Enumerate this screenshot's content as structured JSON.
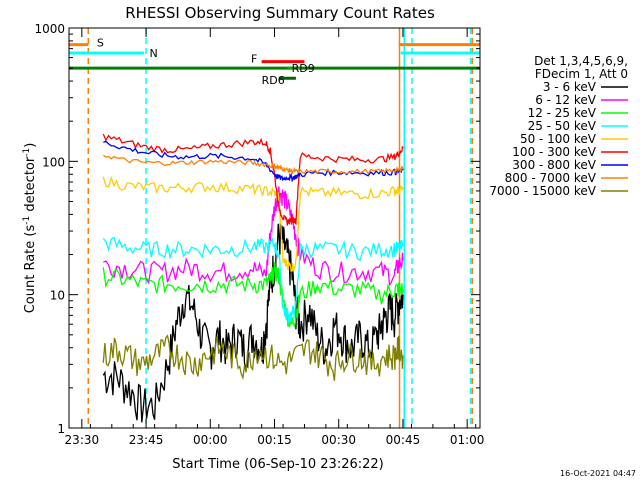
{
  "chart_data": {
    "type": "line",
    "title": "RHESSI Observing Summary Count Rates",
    "xlabel": "Start Time (06-Sep-10 23:26:22)",
    "ylabel_main": "Count Rate (s",
    "ylabel_sup1": "-1",
    "ylabel_mid": " detector",
    "ylabel_sup2": "-1",
    "ylabel_end": ")",
    "yscale": "log",
    "ylim": [
      1,
      1000
    ],
    "xlim_min": [
      -3,
      93
    ],
    "x_ticks": [
      {
        "t": 0,
        "label": "23:30"
      },
      {
        "t": 15,
        "label": "23:45"
      },
      {
        "t": 30,
        "label": "00:00"
      },
      {
        "t": 45,
        "label": "00:15"
      },
      {
        "t": 60,
        "label": "00:30"
      },
      {
        "t": 75,
        "label": "00:45"
      },
      {
        "t": 90,
        "label": "01:00"
      }
    ],
    "y_ticks": [
      {
        "v": 1,
        "label": "1"
      },
      {
        "v": 10,
        "label": "10"
      },
      {
        "v": 100,
        "label": "100"
      },
      {
        "v": 1000,
        "label": "1000"
      }
    ],
    "legend_header": [
      "Det 1,3,4,5,6,9,",
      "FDecim 1, Att 0"
    ],
    "series": [
      {
        "name": "3 - 6 keV",
        "color": "#000000",
        "x": [
          5,
          8,
          11,
          14,
          17,
          20,
          22,
          24,
          26,
          28,
          30,
          32,
          34,
          36,
          38,
          40,
          42,
          43,
          44,
          45,
          46,
          47,
          48,
          49,
          50,
          51,
          53,
          55,
          57,
          59,
          61,
          63,
          65,
          67,
          69,
          70,
          71,
          72,
          73,
          74,
          75
        ],
        "values": [
          2.5,
          2.5,
          2,
          1.5,
          1.5,
          3,
          6,
          10,
          8,
          5,
          4,
          5,
          4,
          5,
          4,
          5,
          4,
          6,
          12,
          18,
          28,
          25,
          20,
          15,
          8,
          6,
          8,
          5,
          4,
          6,
          5,
          4,
          5,
          4,
          5,
          6,
          7,
          8,
          7,
          9,
          10
        ]
      },
      {
        "name": "6 - 12 keV",
        "color": "#ff00ff",
        "x": [
          5,
          10,
          15,
          20,
          25,
          30,
          35,
          40,
          43,
          44,
          45,
          46,
          47,
          48,
          49,
          50,
          51,
          55,
          60,
          65,
          70,
          73,
          74,
          75
        ],
        "values": [
          17,
          16,
          15,
          15,
          16,
          15,
          15,
          16,
          14,
          28,
          45,
          60,
          55,
          48,
          38,
          28,
          20,
          16,
          15,
          15,
          15,
          14,
          17,
          18
        ]
      },
      {
        "name": "12 - 25 keV",
        "color": "#00ff00",
        "x": [
          5,
          10,
          15,
          20,
          25,
          30,
          35,
          40,
          43,
          44,
          45,
          46,
          47,
          48,
          49,
          50,
          51,
          55,
          60,
          65,
          70,
          73,
          74,
          75
        ],
        "values": [
          14,
          13,
          12,
          12,
          12,
          12,
          12,
          12,
          12,
          13,
          15,
          14,
          9,
          7,
          6,
          7,
          10,
          12,
          11,
          11,
          10,
          11,
          11,
          11
        ]
      },
      {
        "name": "25 - 50 keV",
        "color": "#00ffff",
        "x": [
          5,
          10,
          15,
          20,
          25,
          30,
          35,
          40,
          43,
          45,
          46,
          47,
          48,
          49,
          50,
          51,
          55,
          60,
          65,
          70,
          73,
          74,
          75
        ],
        "values": [
          25,
          23,
          22,
          22,
          22,
          22,
          22,
          23,
          23,
          24,
          20,
          8,
          7,
          7,
          8,
          22,
          22,
          22,
          21,
          22,
          22,
          22,
          23
        ]
      },
      {
        "name": "50 - 100 keV",
        "color": "#ffcc00",
        "x": [
          5,
          10,
          15,
          20,
          25,
          30,
          35,
          40,
          43,
          45,
          46,
          47,
          48,
          49,
          50,
          51,
          55,
          60,
          65,
          70,
          73,
          74,
          75
        ],
        "values": [
          72,
          66,
          64,
          63,
          64,
          65,
          63,
          62,
          60,
          58,
          55,
          18,
          17,
          16,
          17,
          60,
          58,
          58,
          57,
          58,
          60,
          60,
          62
        ]
      },
      {
        "name": "100 - 300 keV",
        "color": "#ff0000",
        "x": [
          5,
          10,
          15,
          20,
          25,
          30,
          35,
          40,
          43,
          44,
          45,
          46,
          47,
          48,
          49,
          50,
          51,
          55,
          60,
          65,
          70,
          73,
          74,
          75
        ],
        "values": [
          155,
          140,
          128,
          122,
          123,
          130,
          135,
          140,
          138,
          120,
          80,
          45,
          38,
          35,
          37,
          36,
          110,
          107,
          104,
          103,
          104,
          108,
          115,
          125
        ]
      },
      {
        "name": "300 - 800 keV",
        "color": "#0000ff",
        "x": [
          5,
          10,
          15,
          20,
          25,
          30,
          35,
          40,
          43,
          45,
          46,
          47,
          48,
          49,
          50,
          51,
          55,
          60,
          65,
          70,
          73,
          74,
          75
        ],
        "values": [
          140,
          126,
          116,
          110,
          108,
          110,
          108,
          105,
          95,
          80,
          76,
          74,
          76,
          75,
          77,
          80,
          82,
          83,
          82,
          82,
          83,
          84,
          86
        ]
      },
      {
        "name": "800 - 7000 keV",
        "color": "#ff8000",
        "x": [
          5,
          10,
          15,
          20,
          25,
          30,
          35,
          40,
          43,
          45,
          46,
          47,
          48,
          49,
          50,
          51,
          55,
          60,
          65,
          70,
          73,
          74,
          75
        ],
        "values": [
          112,
          102,
          98,
          97,
          98,
          100,
          99,
          97,
          95,
          92,
          90,
          88,
          86,
          85,
          84,
          84,
          84,
          84,
          84,
          84,
          86,
          86,
          90
        ]
      },
      {
        "name": "7000 - 15000 keV",
        "color": "#808000",
        "x": [
          5,
          8,
          11,
          14,
          17,
          20,
          23,
          26,
          29,
          32,
          35,
          38,
          41,
          44,
          47,
          50,
          53,
          56,
          59,
          62,
          65,
          68,
          71,
          73,
          74,
          75
        ],
        "values": [
          3.5,
          4,
          3.5,
          3,
          3.5,
          4,
          3.5,
          3,
          3.5,
          4,
          3.5,
          3,
          4,
          3.5,
          3,
          3.5,
          4,
          3.5,
          3,
          3.5,
          3.5,
          3,
          3.5,
          3.5,
          4,
          3.5
        ]
      }
    ],
    "annotations": {
      "flag_S": {
        "label": "S",
        "color": "#ff8000",
        "t_start": -3,
        "t_end": 1.5,
        "level": 750
      },
      "flag_N": {
        "label": "N",
        "color": "#00ffff",
        "t_start": -3,
        "t_end": 14.5,
        "level": 650
      },
      "flag_F": {
        "label": "F",
        "color": "#ff0000",
        "t_start": 42,
        "t_end": 52,
        "level": 560
      },
      "flag_RD9": {
        "label": "RD9",
        "color": "#00aa00",
        "t_start": 48,
        "t_end": 51,
        "level": 500
      },
      "flag_RD6": {
        "label": "RD6",
        "color": "#006600",
        "t_start": 46,
        "t_end": 50,
        "level": 420
      },
      "night_bar": {
        "color": "#008000",
        "t_start": -3,
        "t_end": 93,
        "level": 500
      },
      "flag_S_right": {
        "color": "#ff8000",
        "t_start": 74,
        "t_end": 93,
        "level": 750
      },
      "flag_N_right": {
        "color": "#00ffff",
        "t_start": 74.5,
        "t_end": 93,
        "level": 650
      },
      "vlines": [
        {
          "t": 1.5,
          "color": "#ff8000",
          "style": "dash"
        },
        {
          "t": 15,
          "color": "#00ffff",
          "style": "dash"
        },
        {
          "t": 74.2,
          "color": "#ff8000",
          "style": "solid"
        },
        {
          "t": 75.3,
          "color": "#00ffff",
          "style": "solid"
        },
        {
          "t": 90.8,
          "color": "#00ffff",
          "style": "dash"
        },
        {
          "t": 91.2,
          "color": "#ff8000",
          "style": "dash"
        },
        {
          "t": 77.1,
          "color": "#00ffff",
          "style": "dash"
        }
      ]
    },
    "timestamp": "16-Oct-2021 04:47"
  }
}
